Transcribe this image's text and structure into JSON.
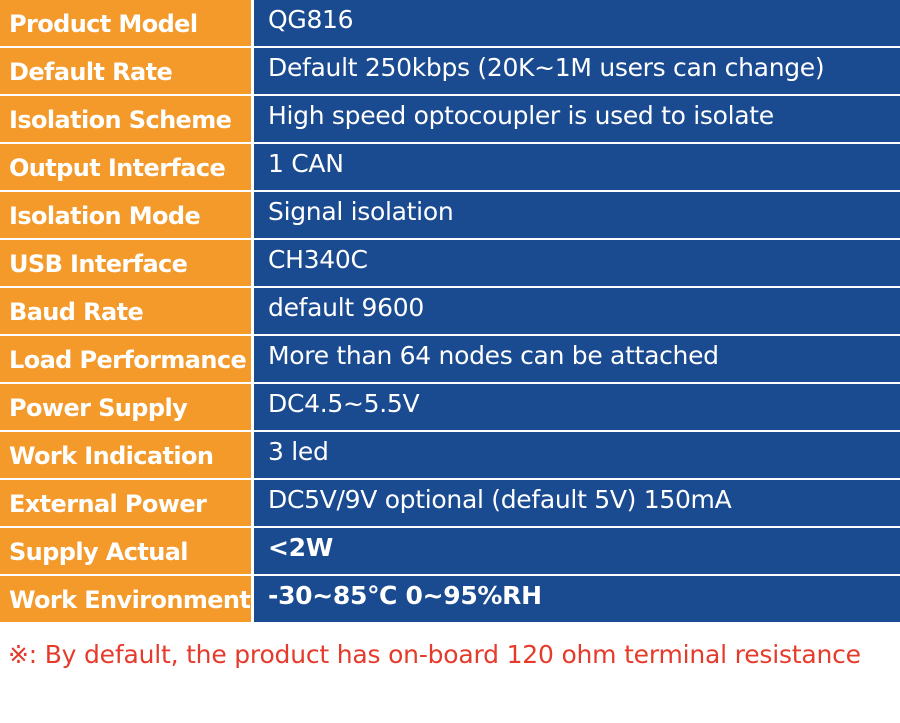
{
  "specs": {
    "rows": [
      {
        "label": "Product Model",
        "value": "QG816"
      },
      {
        "label": "Default Rate",
        "value": "Default 250kbps (20K~1M users can change)"
      },
      {
        "label": "Isolation Scheme",
        "value": "High speed optocoupler is used to isolate"
      },
      {
        "label": "Output Interface",
        "value": "1 CAN"
      },
      {
        "label": "Isolation Mode",
        "value": "Signal isolation"
      },
      {
        "label": "USB Interface",
        "value": "CH340C"
      },
      {
        "label": "Baud Rate",
        "value": "default 9600"
      },
      {
        "label": "Load Performance",
        "value": "More than 64 nodes can be attached"
      },
      {
        "label": "Power Supply",
        "value": "DC4.5~5.5V"
      },
      {
        "label": "Work Indication",
        "value": "3 led"
      },
      {
        "label": "External Power",
        "value": "DC5V/9V optional (default 5V) 150mA"
      },
      {
        "label": "Supply Actual",
        "value": "<2W"
      },
      {
        "label": "Work Environment",
        "value": "-30~85℃  0~95%RH"
      }
    ]
  },
  "footnote": "※: By default, the product has on-board 120 ohm terminal resistance",
  "colors": {
    "label_bg": "#f39a2b",
    "value_bg": "#1a4a90",
    "footnote_text": "#e53b2c"
  }
}
